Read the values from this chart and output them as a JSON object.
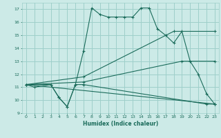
{
  "background_color": "#cceae7",
  "grid_color": "#9ecfca",
  "line_color": "#1a6b5a",
  "xlim": [
    -0.5,
    23.5
  ],
  "ylim": [
    9,
    17.5
  ],
  "xlabel": "Humidex (Indice chaleur)",
  "xticks": [
    0,
    1,
    2,
    3,
    4,
    5,
    6,
    7,
    8,
    9,
    10,
    11,
    12,
    13,
    14,
    15,
    16,
    17,
    18,
    19,
    20,
    21,
    22,
    23
  ],
  "yticks": [
    9,
    10,
    11,
    12,
    13,
    14,
    15,
    16,
    17
  ],
  "lines": [
    {
      "x": [
        0,
        1,
        3,
        4,
        5,
        6,
        7,
        8,
        9,
        10,
        11,
        12,
        13,
        14,
        15,
        16,
        17,
        18,
        19,
        20,
        21,
        22,
        23
      ],
      "y": [
        11.2,
        11.0,
        11.2,
        10.2,
        9.5,
        11.2,
        13.8,
        17.1,
        16.6,
        16.4,
        16.4,
        16.4,
        16.4,
        17.1,
        17.1,
        15.5,
        15.0,
        14.4,
        15.3,
        13.0,
        12.0,
        10.5,
        9.7
      ]
    },
    {
      "x": [
        0,
        3,
        4,
        5,
        6,
        7,
        22,
        23
      ],
      "y": [
        11.2,
        11.2,
        10.2,
        9.5,
        11.2,
        11.2,
        9.7,
        9.7
      ]
    },
    {
      "x": [
        0,
        23
      ],
      "y": [
        11.2,
        9.7
      ]
    },
    {
      "x": [
        0,
        7,
        19,
        23
      ],
      "y": [
        11.2,
        11.4,
        13.0,
        13.0
      ]
    },
    {
      "x": [
        0,
        7,
        18,
        23
      ],
      "y": [
        11.2,
        11.8,
        15.3,
        15.3
      ]
    }
  ]
}
